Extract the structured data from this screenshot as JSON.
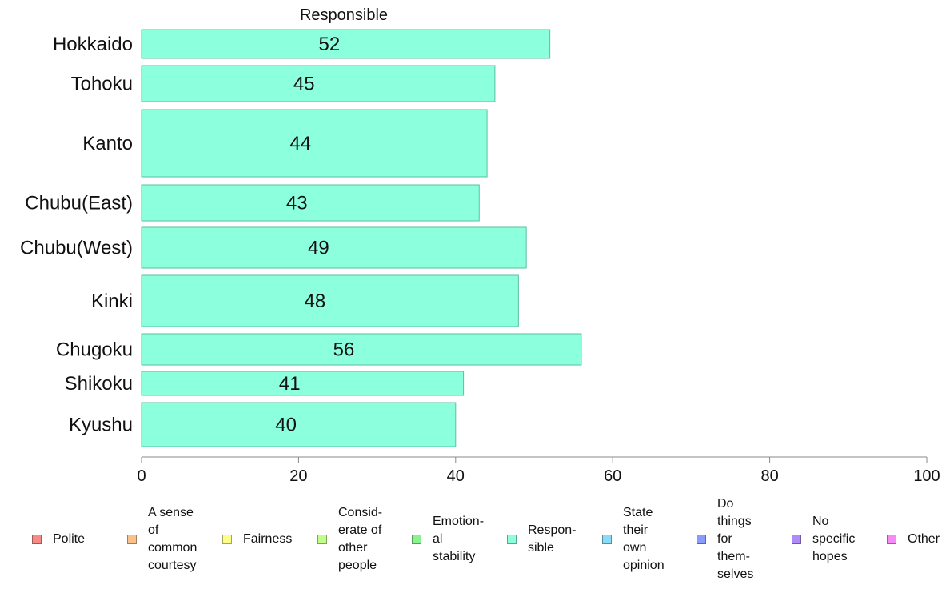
{
  "chart_data": {
    "type": "bar",
    "orientation": "horizontal",
    "title": "Responsible",
    "categories": [
      "Hokkaido",
      "Tohoku",
      "Kanto",
      "Chubu(East)",
      "Chubu(West)",
      "Kinki",
      "Chugoku",
      "Shikoku",
      "Kyushu"
    ],
    "series": [
      {
        "name": "Responsible",
        "values": [
          52,
          45,
          44,
          43,
          49,
          48,
          56,
          41,
          40
        ],
        "color": "#8cffdd"
      }
    ],
    "value_labels": [
      "52",
      "45",
      "44",
      "43",
      "49",
      "48",
      "56",
      "41",
      "40"
    ],
    "xlim": [
      0,
      100
    ],
    "xticks": [
      0,
      20,
      40,
      60,
      80,
      100
    ],
    "xtick_labels": [
      "0",
      "20",
      "40",
      "60",
      "80",
      "100"
    ],
    "grid": false,
    "legend_position": "bottom"
  },
  "legend": {
    "items": [
      {
        "label": "Polite",
        "color": "#f88a86"
      },
      {
        "label": "A sense\nof\ncommon\ncourtesy",
        "color": "#fac28a"
      },
      {
        "label": "Fairness",
        "color": "#fdfd8a"
      },
      {
        "label": "Consid-\nerate of\nother\npeople",
        "color": "#c2fd8a"
      },
      {
        "label": "Emotion-\nal\nstability",
        "color": "#8af28e"
      },
      {
        "label": "Respon-\nsible",
        "color": "#8cffdd"
      },
      {
        "label": "State\ntheir\nown\nopinion",
        "color": "#8adbf5"
      },
      {
        "label": "Do\nthings\nfor\nthem-\nselves",
        "color": "#8a9cfb"
      },
      {
        "label": "No\nspecific\nhopes",
        "color": "#b08af8"
      },
      {
        "label": "Other",
        "color": "#f88af8"
      }
    ]
  }
}
